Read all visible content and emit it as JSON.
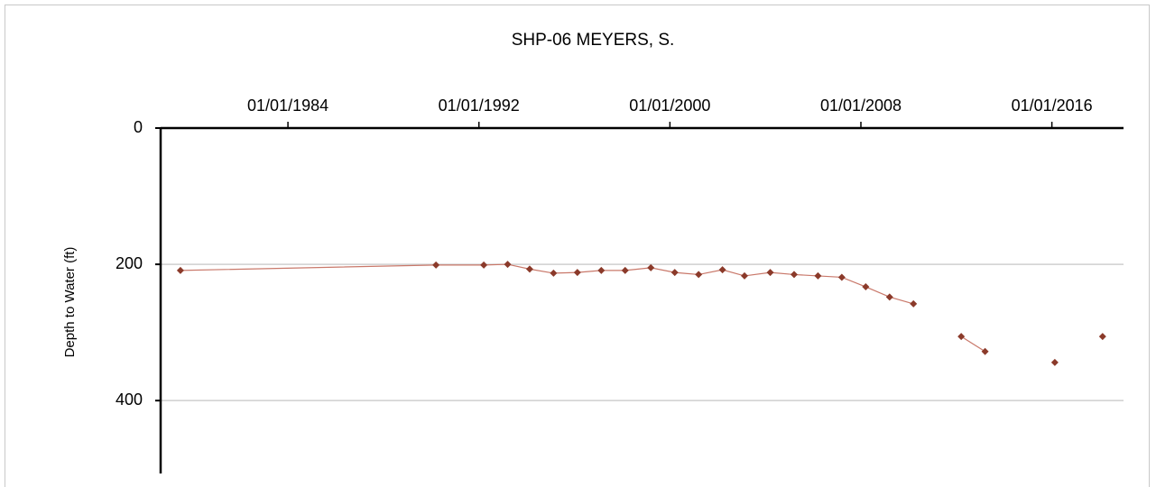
{
  "chart_data": {
    "type": "line",
    "title": "SHP-06  MEYERS, S.",
    "y_label": "Depth to Water (ft)",
    "x": [
      "1979-07-01",
      "1990-03-15",
      "1992-03-15",
      "1993-03-15",
      "1994-02-15",
      "1995-02-15",
      "1996-02-15",
      "1997-02-15",
      "1998-02-15",
      "1999-03-15",
      "2000-03-15",
      "2001-03-15",
      "2002-03-15",
      "2003-02-15",
      "2004-03-15",
      "2005-03-15",
      "2006-03-15",
      "2007-03-15",
      "2008-03-15",
      "2009-03-15",
      "2010-03-15",
      null,
      "2012-03-15",
      "2013-03-15",
      null,
      "2016-02-15",
      null,
      "2018-02-15"
    ],
    "series": [
      {
        "color": "#8b3a2a",
        "line_color": "#c9786a",
        "values": [
          209,
          201,
          201,
          200,
          207,
          213,
          212,
          209,
          209,
          205,
          212,
          215,
          208,
          217,
          212,
          215,
          217,
          219,
          233,
          248,
          258,
          null,
          306,
          328,
          null,
          344,
          null,
          306
        ]
      }
    ],
    "xlim": [
      "1978-09-01",
      "2019-01-01"
    ],
    "xticks": [
      {
        "value": "1984-01-01",
        "label": "01/01/1984"
      },
      {
        "value": "1992-01-01",
        "label": "01/01/1992"
      },
      {
        "value": "2000-01-01",
        "label": "01/01/2000"
      },
      {
        "value": "2008-01-01",
        "label": "01/01/2008"
      },
      {
        "value": "2016-01-01",
        "label": "01/01/2016"
      }
    ],
    "ylim": [
      0,
      507
    ],
    "yticks": [
      0,
      200,
      400
    ],
    "y_inverted": true,
    "grid": true
  }
}
